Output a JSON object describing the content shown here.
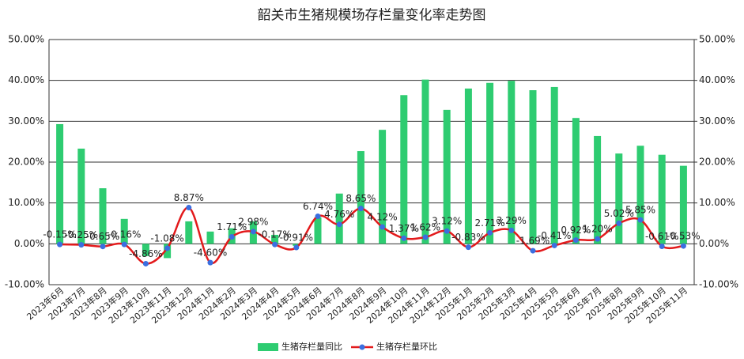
{
  "chart_data": {
    "type": "bar+line",
    "title": "韶关市生猪规模场存栏量变化率走势图",
    "categories": [
      "2023年6月",
      "2023年7月",
      "2023年8月",
      "2023年9月",
      "2023年10月",
      "2023年11月",
      "2023年12月",
      "2024年1月",
      "2024年2月",
      "2024年3月",
      "2024年4月",
      "2024年5月",
      "2024年6月",
      "2024年7月",
      "2024年8月",
      "2024年9月",
      "2024年10月",
      "2024年11月",
      "2024年12月",
      "2025年1月",
      "2025年2月",
      "2025年3月",
      "2025年4月",
      "2025年5月",
      "2025年6月",
      "2025年7月",
      "2025年8月",
      "2025年9月",
      "2025年10月",
      "2025年11月"
    ],
    "series": [
      {
        "name": "生猪存栏量同比",
        "type": "bar",
        "color": "#2ecc71",
        "values": [
          29.3,
          23.3,
          13.6,
          6.1,
          -3.0,
          -3.5,
          5.5,
          3.0,
          3.8,
          5.5,
          2.2,
          -0.5,
          6.5,
          12.3,
          22.7,
          27.9,
          36.4,
          40.2,
          32.8,
          38.0,
          39.4,
          39.9,
          37.6,
          38.4,
          30.8,
          26.4,
          22.1,
          24.0,
          21.8,
          19.1
        ]
      },
      {
        "name": "生猪存栏量环比",
        "type": "line",
        "axis": "y2",
        "color": "#e31a1c",
        "marker_color": "#3b6fe0",
        "values": [
          -0.15,
          -0.25,
          -0.65,
          -0.16,
          -4.86,
          -1.08,
          8.87,
          -4.6,
          1.71,
          2.98,
          -0.17,
          -0.91,
          6.74,
          4.76,
          8.65,
          4.12,
          1.37,
          1.62,
          3.12,
          -0.83,
          2.71,
          3.29,
          -1.69,
          -0.41,
          0.92,
          1.2,
          5.02,
          5.85,
          -0.61,
          -0.53
        ],
        "value_labels": [
          "-0.15%",
          "-0.25%",
          "-0.65%",
          "-0.16%",
          "-4.86%",
          "-1.08%",
          "8.87%",
          "-4.60%",
          "1.71%",
          "2.98%",
          "-0.17%",
          "-0.91%",
          "6.74%",
          "4.76%",
          "8.65%",
          "4.12%",
          "1.37%",
          "1.62%",
          "3.12%",
          "-0.83%",
          "2.71%",
          "3.29%",
          "-1.69%",
          "-0.41%",
          "0.92%",
          "1.20%",
          "5.02%",
          "5.85%",
          "-0.61%",
          "-0.53%"
        ]
      }
    ],
    "ylim": [
      -10,
      50
    ],
    "yticks": [
      {
        "value": -10,
        "label": "-10.00%"
      },
      {
        "value": 0,
        "label": "0.00%"
      },
      {
        "value": 10,
        "label": "10.00%"
      },
      {
        "value": 20,
        "label": "20.00%"
      },
      {
        "value": 30,
        "label": "30.00%"
      },
      {
        "value": 40,
        "label": "40.00%"
      },
      {
        "value": 50,
        "label": "50.00%"
      }
    ],
    "y2lim": [
      -10,
      50
    ],
    "y2ticks": [
      {
        "value": -10,
        "label": "-10.00%"
      },
      {
        "value": 0,
        "label": "0.00%"
      },
      {
        "value": 10,
        "label": "10.00%"
      },
      {
        "value": 20,
        "label": "20.00%"
      },
      {
        "value": 30,
        "label": "30.00%"
      },
      {
        "value": 40,
        "label": "40.00%"
      },
      {
        "value": 50,
        "label": "50.00%"
      }
    ],
    "grid": true,
    "legend": "bottom"
  }
}
